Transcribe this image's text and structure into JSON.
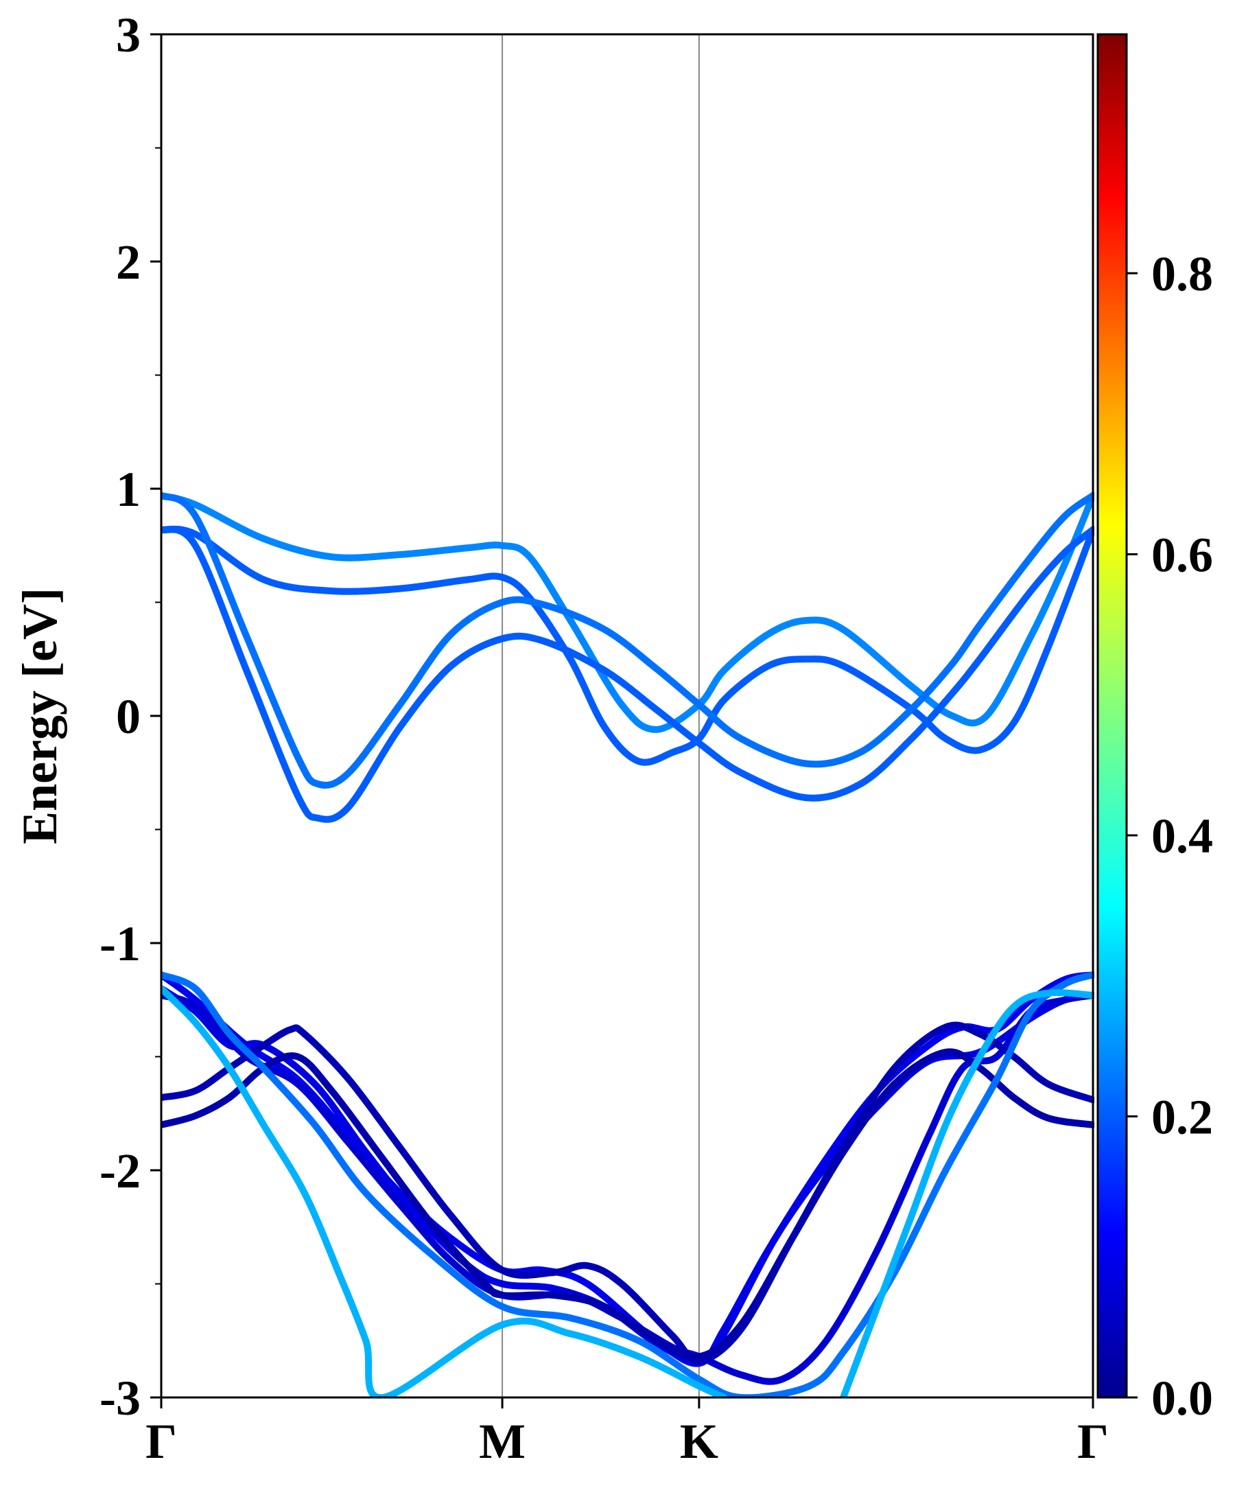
{
  "chart_data": {
    "type": "line",
    "title": "",
    "xlabel": "",
    "ylabel": "Energy [eV]",
    "ylim": [
      -3,
      3
    ],
    "yticks": [
      "3",
      "2",
      "1",
      "0",
      "-1",
      "-2",
      "-3"
    ],
    "ytick_values": [
      3,
      2,
      1,
      0,
      -1,
      -2,
      -3
    ],
    "kpath": {
      "labels": [
        "Γ",
        "M",
        "K",
        "Γ"
      ],
      "positions": [
        0,
        1,
        1.577,
        2.732
      ]
    },
    "colorbar": {
      "colormap": "jet",
      "range": [
        0,
        0.97
      ],
      "ticks": [
        "0.0",
        "0.2",
        "0.4",
        "0.6",
        "0.8"
      ],
      "tick_values": [
        0,
        0.2,
        0.4,
        0.6,
        0.8
      ]
    },
    "grid": false,
    "series": [
      {
        "color_value": 0.24,
        "points": [
          [
            0,
            0.97
          ],
          [
            0.1,
            0.93
          ],
          [
            0.3,
            0.78
          ],
          [
            0.5,
            0.7
          ],
          [
            0.7,
            0.71
          ],
          [
            0.9,
            0.74
          ],
          [
            1.0,
            0.75
          ],
          [
            1.08,
            0.7
          ],
          [
            1.2,
            0.42
          ],
          [
            1.35,
            0.05
          ],
          [
            1.45,
            -0.06
          ],
          [
            1.577,
            0.05
          ],
          [
            1.65,
            0.2
          ],
          [
            1.78,
            0.36
          ],
          [
            1.89,
            0.42
          ],
          [
            2.0,
            0.38
          ],
          [
            2.2,
            0.13
          ],
          [
            2.32,
            0.0
          ],
          [
            2.42,
            0.0
          ],
          [
            2.55,
            0.35
          ],
          [
            2.65,
            0.67
          ],
          [
            2.732,
            0.97
          ]
        ]
      },
      {
        "color_value": 0.2,
        "points": [
          [
            0,
            0.82
          ],
          [
            0.1,
            0.8
          ],
          [
            0.3,
            0.6
          ],
          [
            0.5,
            0.55
          ],
          [
            0.7,
            0.56
          ],
          [
            0.9,
            0.6
          ],
          [
            1.0,
            0.61
          ],
          [
            1.08,
            0.52
          ],
          [
            1.2,
            0.25
          ],
          [
            1.3,
            -0.05
          ],
          [
            1.4,
            -0.2
          ],
          [
            1.5,
            -0.16
          ],
          [
            1.577,
            -0.1
          ],
          [
            1.65,
            0.07
          ],
          [
            1.78,
            0.22
          ],
          [
            1.89,
            0.25
          ],
          [
            2.0,
            0.22
          ],
          [
            2.2,
            0.03
          ],
          [
            2.3,
            -0.1
          ],
          [
            2.4,
            -0.15
          ],
          [
            2.5,
            -0.03
          ],
          [
            2.6,
            0.3
          ],
          [
            2.732,
            0.82
          ]
        ]
      },
      {
        "color_value": 0.22,
        "points": [
          [
            0,
            0.97
          ],
          [
            0.1,
            0.88
          ],
          [
            0.25,
            0.35
          ],
          [
            0.4,
            -0.18
          ],
          [
            0.46,
            -0.3
          ],
          [
            0.55,
            -0.25
          ],
          [
            0.7,
            0.05
          ],
          [
            0.85,
            0.36
          ],
          [
            1.0,
            0.5
          ],
          [
            1.12,
            0.49
          ],
          [
            1.3,
            0.38
          ],
          [
            1.45,
            0.21
          ],
          [
            1.577,
            0.05
          ],
          [
            1.7,
            -0.1
          ],
          [
            1.89,
            -0.21
          ],
          [
            2.05,
            -0.16
          ],
          [
            2.2,
            0.03
          ],
          [
            2.32,
            0.23
          ],
          [
            2.4,
            0.4
          ],
          [
            2.55,
            0.7
          ],
          [
            2.65,
            0.88
          ],
          [
            2.732,
            0.97
          ]
        ]
      },
      {
        "color_value": 0.2,
        "points": [
          [
            0,
            0.82
          ],
          [
            0.1,
            0.75
          ],
          [
            0.25,
            0.2
          ],
          [
            0.4,
            -0.35
          ],
          [
            0.46,
            -0.45
          ],
          [
            0.55,
            -0.4
          ],
          [
            0.7,
            -0.05
          ],
          [
            0.85,
            0.22
          ],
          [
            1.0,
            0.34
          ],
          [
            1.12,
            0.33
          ],
          [
            1.3,
            0.2
          ],
          [
            1.45,
            0.03
          ],
          [
            1.577,
            -0.12
          ],
          [
            1.7,
            -0.25
          ],
          [
            1.89,
            -0.36
          ],
          [
            2.05,
            -0.3
          ],
          [
            2.2,
            -0.1
          ],
          [
            2.32,
            0.1
          ],
          [
            2.4,
            0.25
          ],
          [
            2.55,
            0.55
          ],
          [
            2.65,
            0.72
          ],
          [
            2.732,
            0.82
          ]
        ]
      },
      {
        "color_value": 0.1,
        "points": [
          [
            0,
            -1.14
          ],
          [
            0.1,
            -1.25
          ],
          [
            0.25,
            -1.45
          ],
          [
            0.4,
            -1.6
          ],
          [
            0.55,
            -1.85
          ],
          [
            0.7,
            -2.1
          ],
          [
            0.85,
            -2.3
          ],
          [
            1.0,
            -2.44
          ],
          [
            1.12,
            -2.44
          ],
          [
            1.25,
            -2.5
          ],
          [
            1.45,
            -2.75
          ],
          [
            1.577,
            -2.85
          ],
          [
            1.65,
            -2.7
          ],
          [
            1.78,
            -2.35
          ],
          [
            1.95,
            -1.95
          ],
          [
            2.1,
            -1.65
          ],
          [
            2.25,
            -1.45
          ],
          [
            2.35,
            -1.37
          ],
          [
            2.45,
            -1.38
          ],
          [
            2.55,
            -1.25
          ],
          [
            2.65,
            -1.16
          ],
          [
            2.732,
            -1.14
          ]
        ]
      },
      {
        "color_value": 0.09,
        "points": [
          [
            0,
            -1.2
          ],
          [
            0.1,
            -1.3
          ],
          [
            0.2,
            -1.45
          ],
          [
            0.3,
            -1.45
          ],
          [
            0.45,
            -1.62
          ],
          [
            0.6,
            -1.92
          ],
          [
            0.75,
            -2.2
          ],
          [
            0.9,
            -2.42
          ],
          [
            1.0,
            -2.5
          ],
          [
            1.15,
            -2.52
          ],
          [
            1.3,
            -2.6
          ],
          [
            1.45,
            -2.76
          ],
          [
            1.577,
            -2.84
          ],
          [
            1.65,
            -2.72
          ],
          [
            1.8,
            -2.3
          ],
          [
            1.95,
            -1.98
          ],
          [
            2.1,
            -1.72
          ],
          [
            2.25,
            -1.52
          ],
          [
            2.4,
            -1.48
          ],
          [
            2.55,
            -1.33
          ],
          [
            2.65,
            -1.25
          ],
          [
            2.732,
            -1.23
          ]
        ]
      },
      {
        "color_value": 0.07,
        "points": [
          [
            0,
            -1.23
          ],
          [
            0.1,
            -1.28
          ],
          [
            0.25,
            -1.5
          ],
          [
            0.4,
            -1.62
          ],
          [
            0.55,
            -1.88
          ],
          [
            0.7,
            -2.15
          ],
          [
            0.85,
            -2.4
          ],
          [
            1.0,
            -2.55
          ],
          [
            1.2,
            -2.55
          ],
          [
            1.35,
            -2.65
          ],
          [
            1.5,
            -2.78
          ],
          [
            1.577,
            -2.82
          ],
          [
            1.7,
            -2.9
          ],
          [
            1.82,
            -2.92
          ],
          [
            1.95,
            -2.75
          ],
          [
            2.1,
            -2.35
          ],
          [
            2.25,
            -1.85
          ],
          [
            2.35,
            -1.55
          ],
          [
            2.45,
            -1.5
          ],
          [
            2.55,
            -1.3
          ],
          [
            2.65,
            -1.25
          ],
          [
            2.732,
            -1.23
          ]
        ]
      },
      {
        "color_value": 0.04,
        "points": [
          [
            0,
            -1.68
          ],
          [
            0.1,
            -1.65
          ],
          [
            0.2,
            -1.55
          ],
          [
            0.3,
            -1.45
          ],
          [
            0.38,
            -1.38
          ],
          [
            0.42,
            -1.4
          ],
          [
            0.55,
            -1.6
          ],
          [
            0.7,
            -1.9
          ],
          [
            0.85,
            -2.2
          ],
          [
            1.0,
            -2.44
          ],
          [
            1.15,
            -2.45
          ],
          [
            1.25,
            -2.42
          ],
          [
            1.35,
            -2.5
          ],
          [
            1.5,
            -2.73
          ],
          [
            1.577,
            -2.84
          ],
          [
            1.7,
            -2.7
          ],
          [
            1.85,
            -2.3
          ],
          [
            2.0,
            -1.9
          ],
          [
            2.15,
            -1.55
          ],
          [
            2.3,
            -1.37
          ],
          [
            2.4,
            -1.4
          ],
          [
            2.5,
            -1.5
          ],
          [
            2.6,
            -1.62
          ],
          [
            2.732,
            -1.69
          ]
        ]
      },
      {
        "color_value": 0.03,
        "points": [
          [
            0,
            -1.8
          ],
          [
            0.1,
            -1.76
          ],
          [
            0.2,
            -1.68
          ],
          [
            0.3,
            -1.55
          ],
          [
            0.4,
            -1.5
          ],
          [
            0.5,
            -1.65
          ],
          [
            0.65,
            -1.95
          ],
          [
            0.8,
            -2.25
          ],
          [
            0.95,
            -2.5
          ],
          [
            1.0,
            -2.55
          ],
          [
            1.15,
            -2.55
          ],
          [
            1.3,
            -2.6
          ],
          [
            1.45,
            -2.75
          ],
          [
            1.577,
            -2.82
          ],
          [
            1.7,
            -2.68
          ],
          [
            1.85,
            -2.3
          ],
          [
            2.0,
            -1.92
          ],
          [
            2.15,
            -1.62
          ],
          [
            2.3,
            -1.48
          ],
          [
            2.4,
            -1.55
          ],
          [
            2.5,
            -1.68
          ],
          [
            2.6,
            -1.77
          ],
          [
            2.732,
            -1.8
          ]
        ]
      },
      {
        "color_value": 0.22,
        "points": [
          [
            0,
            -1.14
          ],
          [
            0.1,
            -1.2
          ],
          [
            0.2,
            -1.4
          ],
          [
            0.3,
            -1.55
          ],
          [
            0.45,
            -1.8
          ],
          [
            0.6,
            -2.1
          ],
          [
            0.8,
            -2.38
          ],
          [
            1.0,
            -2.6
          ],
          [
            1.2,
            -2.65
          ],
          [
            1.4,
            -2.75
          ],
          [
            1.577,
            -2.92
          ],
          [
            1.7,
            -3.0
          ],
          [
            1.9,
            -2.95
          ],
          [
            2.0,
            -2.8
          ],
          [
            2.15,
            -2.45
          ],
          [
            2.3,
            -2.0
          ],
          [
            2.45,
            -1.6
          ],
          [
            2.55,
            -1.3
          ],
          [
            2.65,
            -1.18
          ],
          [
            2.732,
            -1.14
          ]
        ]
      },
      {
        "color_value": 0.28,
        "points": [
          [
            0,
            -1.2
          ],
          [
            0.1,
            -1.35
          ],
          [
            0.2,
            -1.55
          ],
          [
            0.3,
            -1.8
          ],
          [
            0.42,
            -2.1
          ],
          [
            0.52,
            -2.45
          ],
          [
            0.6,
            -2.75
          ],
          [
            0.65,
            -3.0
          ],
          [
            1.0,
            -2.68
          ],
          [
            1.2,
            -2.72
          ],
          [
            1.4,
            -2.82
          ],
          [
            1.577,
            -2.95
          ],
          [
            1.65,
            -3.0
          ]
        ]
      },
      {
        "color_value": 0.28,
        "points": [
          [
            2.0,
            -3.0
          ],
          [
            2.1,
            -2.6
          ],
          [
            2.2,
            -2.2
          ],
          [
            2.3,
            -1.8
          ],
          [
            2.4,
            -1.5
          ],
          [
            2.5,
            -1.28
          ],
          [
            2.6,
            -1.22
          ],
          [
            2.732,
            -1.23
          ]
        ]
      }
    ]
  }
}
